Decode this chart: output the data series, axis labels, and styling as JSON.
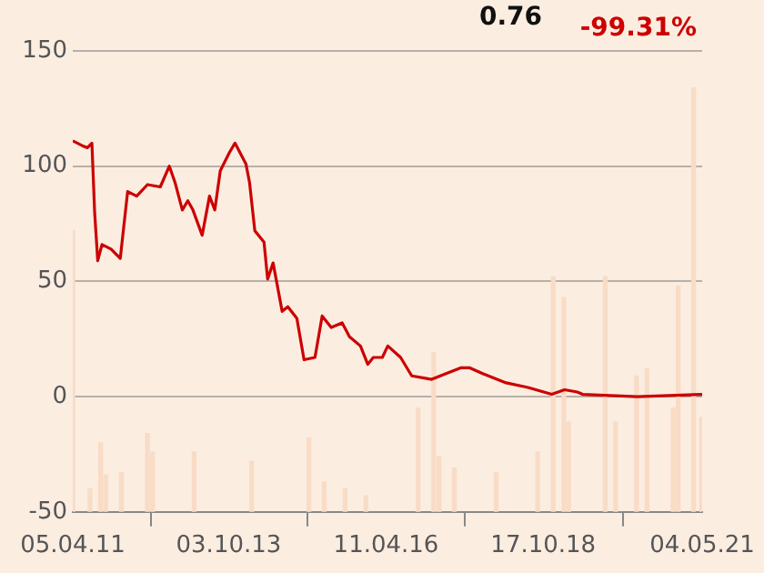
{
  "chart_data": {
    "type": "line",
    "annotations": [
      "0.76",
      "-99.31%"
    ],
    "xlim": [
      "2011-04-05",
      "2021-05-04"
    ],
    "xticks": [
      {
        "value": "2011-04-05",
        "label": "05.04.11"
      },
      {
        "value": "2013-10-03",
        "label": "03.10.13"
      },
      {
        "value": "2016-04-11",
        "label": "11.04.16"
      },
      {
        "value": "2018-10-17",
        "label": "17.10.18"
      },
      {
        "value": "2021-05-04",
        "label": "04.05.21"
      }
    ],
    "ylim": [
      -50,
      150
    ],
    "yticks": [
      -50,
      0,
      50,
      100,
      150
    ],
    "grid": "y",
    "legend": false,
    "marker": "none",
    "line_style": "solid",
    "series": [
      {
        "type": "bar",
        "color": "#f8dcc6",
        "x": [
          "2011-04-05",
          "2011-07",
          "2011-09",
          "2011-10",
          "2012-01",
          "2012-06",
          "2012-07",
          "2013-03",
          "2014-02",
          "2015-01",
          "2015-04",
          "2015-08",
          "2015-12",
          "2016-10",
          "2017-01",
          "2017-02",
          "2017-05",
          "2018-01",
          "2018-09",
          "2018-12",
          "2019-02",
          "2019-03",
          "2019-10",
          "2019-12",
          "2020-04",
          "2020-06",
          "2020-11",
          "2020-12",
          "2021-03",
          "2021-05-01"
        ],
        "base": [
          -50,
          -50,
          -50,
          -50,
          -50,
          -50,
          -50,
          -50,
          -50,
          -50,
          -50,
          -50,
          -50,
          -50,
          -50,
          -50,
          -50,
          -50,
          -50,
          -50,
          -50,
          -50,
          -50,
          -50,
          -50,
          -50,
          -50,
          -50,
          -50,
          -50
        ],
        "values": [
          122,
          10,
          30,
          16,
          17,
          34,
          26,
          26,
          22,
          32,
          13,
          10,
          7,
          45,
          69,
          24,
          19,
          17,
          26,
          102,
          93,
          39,
          102,
          39,
          59,
          62,
          45,
          98,
          184,
          41
        ]
      },
      {
        "color": "#cc0000",
        "x": [
          "2011-04-05",
          "2011-05-28",
          "2011-06-30",
          "2011-07-26",
          "2011-08-11",
          "2011-08-29",
          "2011-09-23",
          "2011-11-15",
          "2012-01-08",
          "2012-02-20",
          "2012-04-13",
          "2012-06-15",
          "2012-08-29",
          "2012-10-21",
          "2012-11-23",
          "2013-01-05",
          "2013-02-06",
          "2013-03-08",
          "2013-05-01",
          "2013-06-13",
          "2013-07-14",
          "2013-08-15",
          "2013-10-08",
          "2013-11-09",
          "2014-01-12",
          "2014-02-02",
          "2014-03-05",
          "2014-04-28",
          "2014-05-19",
          "2014-06-20",
          "2014-08-12",
          "2014-09-14",
          "2014-11-06",
          "2014-12-18",
          "2015-02-20",
          "2015-04-03",
          "2015-05-26",
          "2015-07-29",
          "2015-09-10",
          "2015-11-13",
          "2015-12-26",
          "2016-01-27",
          "2016-03-20",
          "2016-04-21",
          "2016-07-05",
          "2016-09-08",
          "2017-01-03",
          "2017-03-28",
          "2017-06-21",
          "2017-08-14",
          "2017-10-28",
          "2018-03-14",
          "2018-07-20",
          "2018-12-06",
          "2019-02-19",
          "2019-05-04",
          "2019-06-05",
          "2020-04-20",
          "2021-05-04"
        ],
        "values": [
          111,
          109,
          108,
          110,
          80,
          59,
          66,
          64,
          60,
          89,
          87,
          92,
          91,
          100,
          93,
          81,
          85,
          81,
          70,
          87,
          81,
          98,
          106,
          110,
          101,
          93,
          72,
          67,
          51,
          58,
          37,
          39,
          34,
          16,
          17,
          35,
          30,
          32,
          26,
          22,
          14,
          17,
          17,
          22,
          17,
          9,
          7.5,
          10,
          12.5,
          12.5,
          10,
          6,
          4,
          1,
          3,
          2,
          1,
          0,
          1
        ]
      }
    ]
  }
}
